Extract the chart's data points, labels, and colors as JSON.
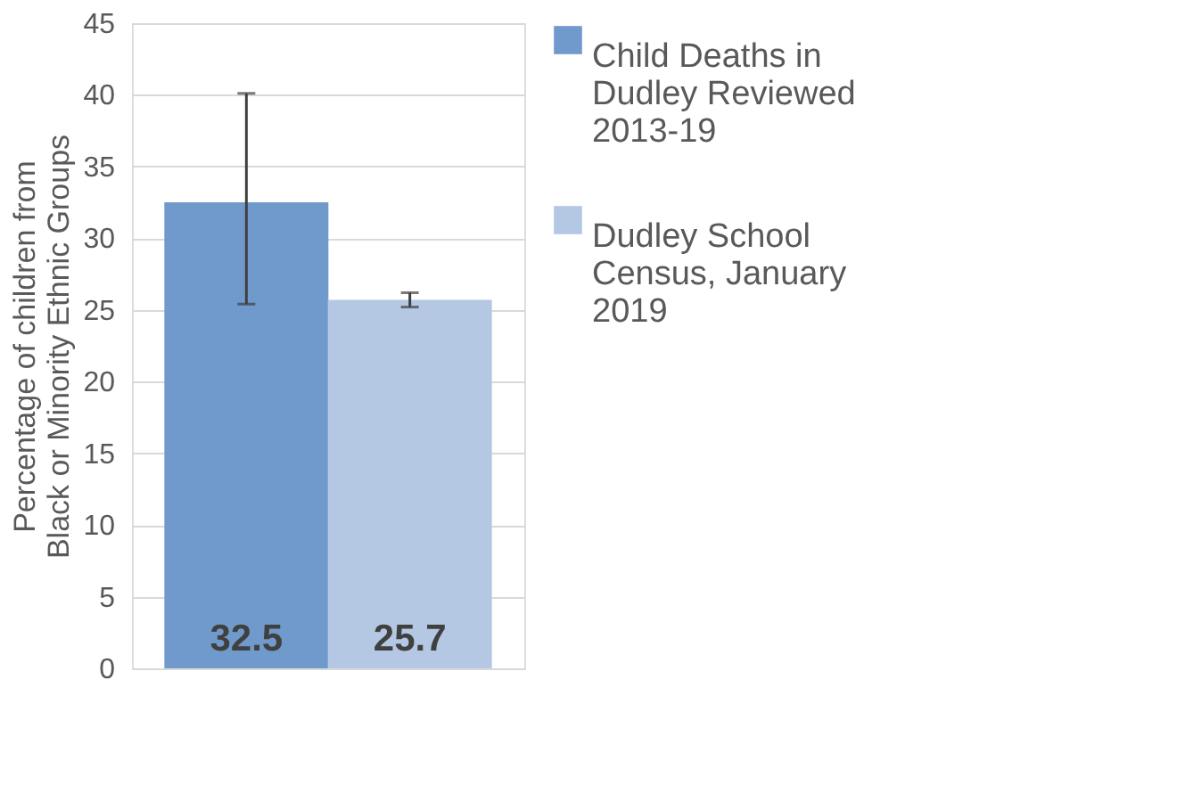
{
  "chart_data": {
    "type": "bar",
    "ylabel": "Percentage of children from\nBlack or Minority Ethnic Groups",
    "categories": [
      null
    ],
    "series": [
      {
        "name": "Child Deaths in Dudley Reviewed 2013-19",
        "color": "#6f9acb",
        "values": [
          32.5
        ],
        "errors": [
          [
            25.4,
            40.1
          ]
        ]
      },
      {
        "name": "Dudley School Census, January 2019",
        "color": "#b4c8e3",
        "values": [
          25.7
        ],
        "errors": [
          [
            25.2,
            26.2
          ]
        ]
      }
    ],
    "ylim": [
      0,
      45
    ],
    "yticks": [
      0,
      5,
      10,
      15,
      20,
      25,
      30,
      35,
      40,
      45
    ],
    "grid": "y",
    "legend": "right",
    "data_labels": true
  }
}
